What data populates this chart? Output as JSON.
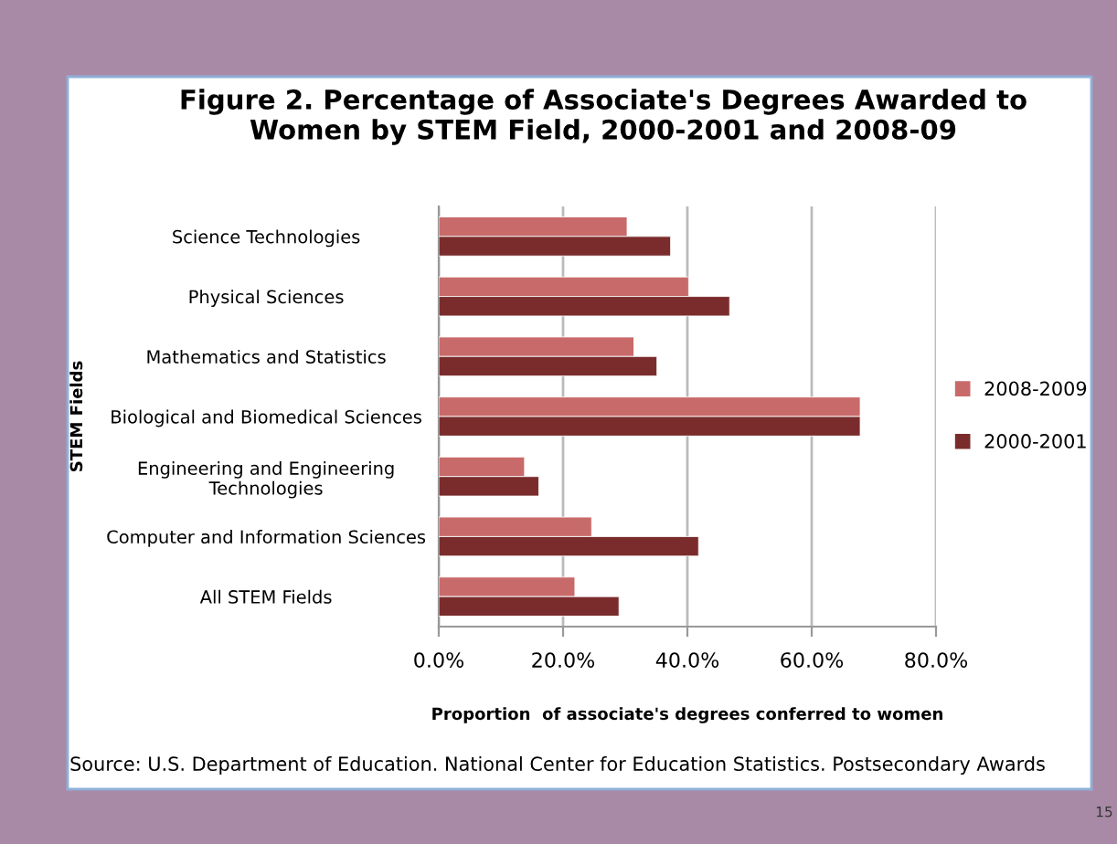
{
  "chart_data": {
    "type": "bar",
    "orientation": "horizontal",
    "title": "Figure 2. Percentage of Associate's Degrees Awarded to\nWomen by STEM Field, 2000-2001 and 2008-09",
    "xlabel": "Proportion  of associate's degrees conferred to women",
    "ylabel": "STEM Fields",
    "categories": [
      "Science Technologies",
      "Physical Sciences",
      "Mathematics and Statistics",
      "Biological and Biomedical Sciences",
      "Engineering and Engineering\nTechnologies",
      "Computer and Information Sciences",
      "All STEM Fields"
    ],
    "series": [
      {
        "name": "2008-2009",
        "color": "#c96a6a",
        "values": [
          30.3,
          40.2,
          31.4,
          67.8,
          13.8,
          24.6,
          21.9
        ]
      },
      {
        "name": "2000-2001",
        "color": "#7a2c2c",
        "values": [
          37.3,
          46.8,
          35.1,
          67.8,
          16.1,
          41.8,
          29.0
        ]
      }
    ],
    "xlim": [
      0,
      80
    ],
    "xticks": [
      {
        "value": 0,
        "label": "0.0%"
      },
      {
        "value": 20,
        "label": "20.0%"
      },
      {
        "value": 40,
        "label": "40.0%"
      },
      {
        "value": 60,
        "label": "60.0%"
      },
      {
        "value": 80,
        "label": "80.0%"
      }
    ],
    "grid": "x",
    "legend": "right",
    "annotations": [
      "Source: U.S. Department of Education. National Center for Education Statistics. Postsecondary Awards",
      "15"
    ]
  }
}
